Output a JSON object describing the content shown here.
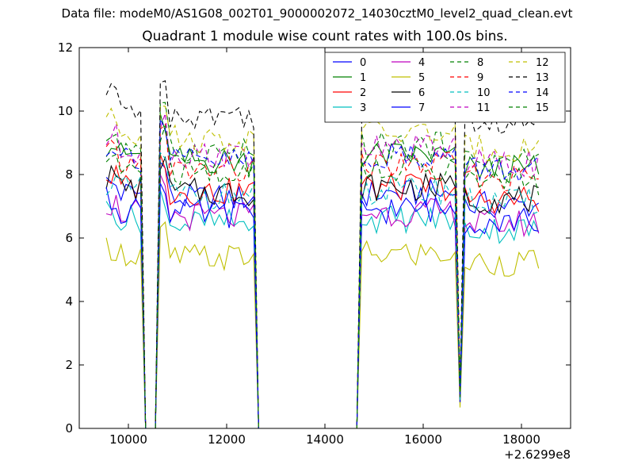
{
  "figure": {
    "suptitle": "Data file: modeM0/AS1G08_002T01_9000002072_14030cztM0_level2_quad_clean.evt",
    "title": "Quadrant 1 module wise count rates with 100.0s bins.",
    "x_offset_label": "+2.6299e8"
  },
  "chart_data": {
    "type": "line",
    "title": "Quadrant 1 module wise count rates with 100.0s bins.",
    "xlabel": "",
    "ylabel": "",
    "xlim": [
      9000,
      19000
    ],
    "ylim": [
      0,
      12
    ],
    "x_offset": 262990000,
    "xticks": [
      10000,
      12000,
      14000,
      16000,
      18000
    ],
    "yticks": [
      0,
      2,
      4,
      6,
      8,
      10,
      12
    ],
    "grid": false,
    "legend_location": "top-right",
    "legend_columns": 4,
    "x": [
      9550,
      9650,
      9750,
      9850,
      9950,
      10050,
      10150,
      10250,
      10350,
      10450,
      10550,
      10650,
      10750,
      10850,
      10950,
      11050,
      11150,
      11250,
      11350,
      11450,
      11550,
      11650,
      11750,
      11850,
      11950,
      12050,
      12150,
      12250,
      12350,
      12450,
      12550,
      12650,
      12750,
      12850,
      12950,
      13050,
      13150,
      13250,
      13350,
      13450,
      13550,
      13650,
      13750,
      13850,
      13950,
      14050,
      14150,
      14250,
      14350,
      14450,
      14550,
      14650,
      14750,
      14850,
      14950,
      15050,
      15150,
      15250,
      15350,
      15450,
      15550,
      15650,
      15750,
      15850,
      15950,
      16050,
      16150,
      16250,
      16350,
      16450,
      16550,
      16650,
      16750,
      16850,
      16950,
      17050,
      17150,
      17250,
      17350,
      17450,
      17550,
      17650,
      17750,
      17850,
      17950,
      18050,
      18150,
      18250,
      18350
    ],
    "series": [
      {
        "name": "0",
        "color": "#0000ff",
        "dash": "solid",
        "base": 7.4
      },
      {
        "name": "1",
        "color": "#008000",
        "dash": "solid",
        "base": 8.6
      },
      {
        "name": "2",
        "color": "#ff0000",
        "dash": "solid",
        "base": 7.6
      },
      {
        "name": "3",
        "color": "#00bfbf",
        "dash": "solid",
        "base": 6.6
      },
      {
        "name": "4",
        "color": "#bf00bf",
        "dash": "solid",
        "base": 6.8
      },
      {
        "name": "5",
        "color": "#bfbf00",
        "dash": "solid",
        "base": 5.5
      },
      {
        "name": "6",
        "color": "#000000",
        "dash": "solid",
        "base": 7.6
      },
      {
        "name": "7",
        "color": "#0000ff",
        "dash": "solid",
        "base": 6.9
      },
      {
        "name": "8",
        "color": "#008000",
        "dash": "dashed",
        "base": 8.9
      },
      {
        "name": "9",
        "color": "#ff0000",
        "dash": "dashed",
        "base": 8.3
      },
      {
        "name": "10",
        "color": "#00bfbf",
        "dash": "dashed",
        "base": 7.5
      },
      {
        "name": "11",
        "color": "#bf00bf",
        "dash": "dashed",
        "base": 8.8
      },
      {
        "name": "12",
        "color": "#bfbf00",
        "dash": "dashed",
        "base": 9.3
      },
      {
        "name": "13",
        "color": "#000000",
        "dash": "dashed",
        "base": 10.1
      },
      {
        "name": "14",
        "color": "#0000ff",
        "dash": "dashed",
        "base": 8.6
      },
      {
        "name": "15",
        "color": "#008000",
        "dash": "dashed",
        "base": 8.2
      }
    ]
  }
}
